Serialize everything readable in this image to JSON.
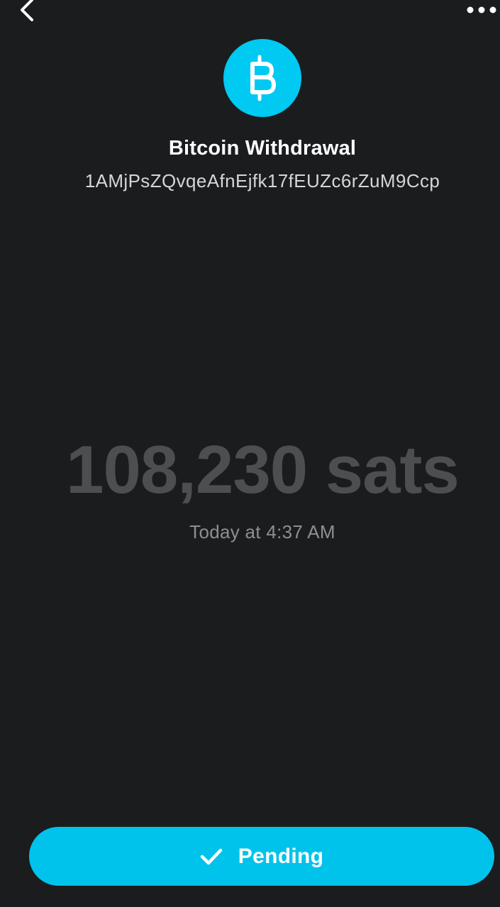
{
  "header": {
    "back_icon": "chevron-left-icon",
    "more_icon": "more-horizontal-icon"
  },
  "transaction": {
    "icon": "bitcoin-icon",
    "title": "Bitcoin Withdrawal",
    "address": "1AMjPsZQvqeAfnEjfk17fEUZc6rZuM9Ccp",
    "amount": "108,230 sats",
    "timestamp": "Today at 4:37 AM"
  },
  "status": {
    "icon": "checkmark-icon",
    "label": "Pending"
  },
  "colors": {
    "background": "#1b1c1e",
    "accent": "#00c3ec",
    "amount_text": "#4d4e50",
    "secondary_text": "#8e8f92"
  }
}
